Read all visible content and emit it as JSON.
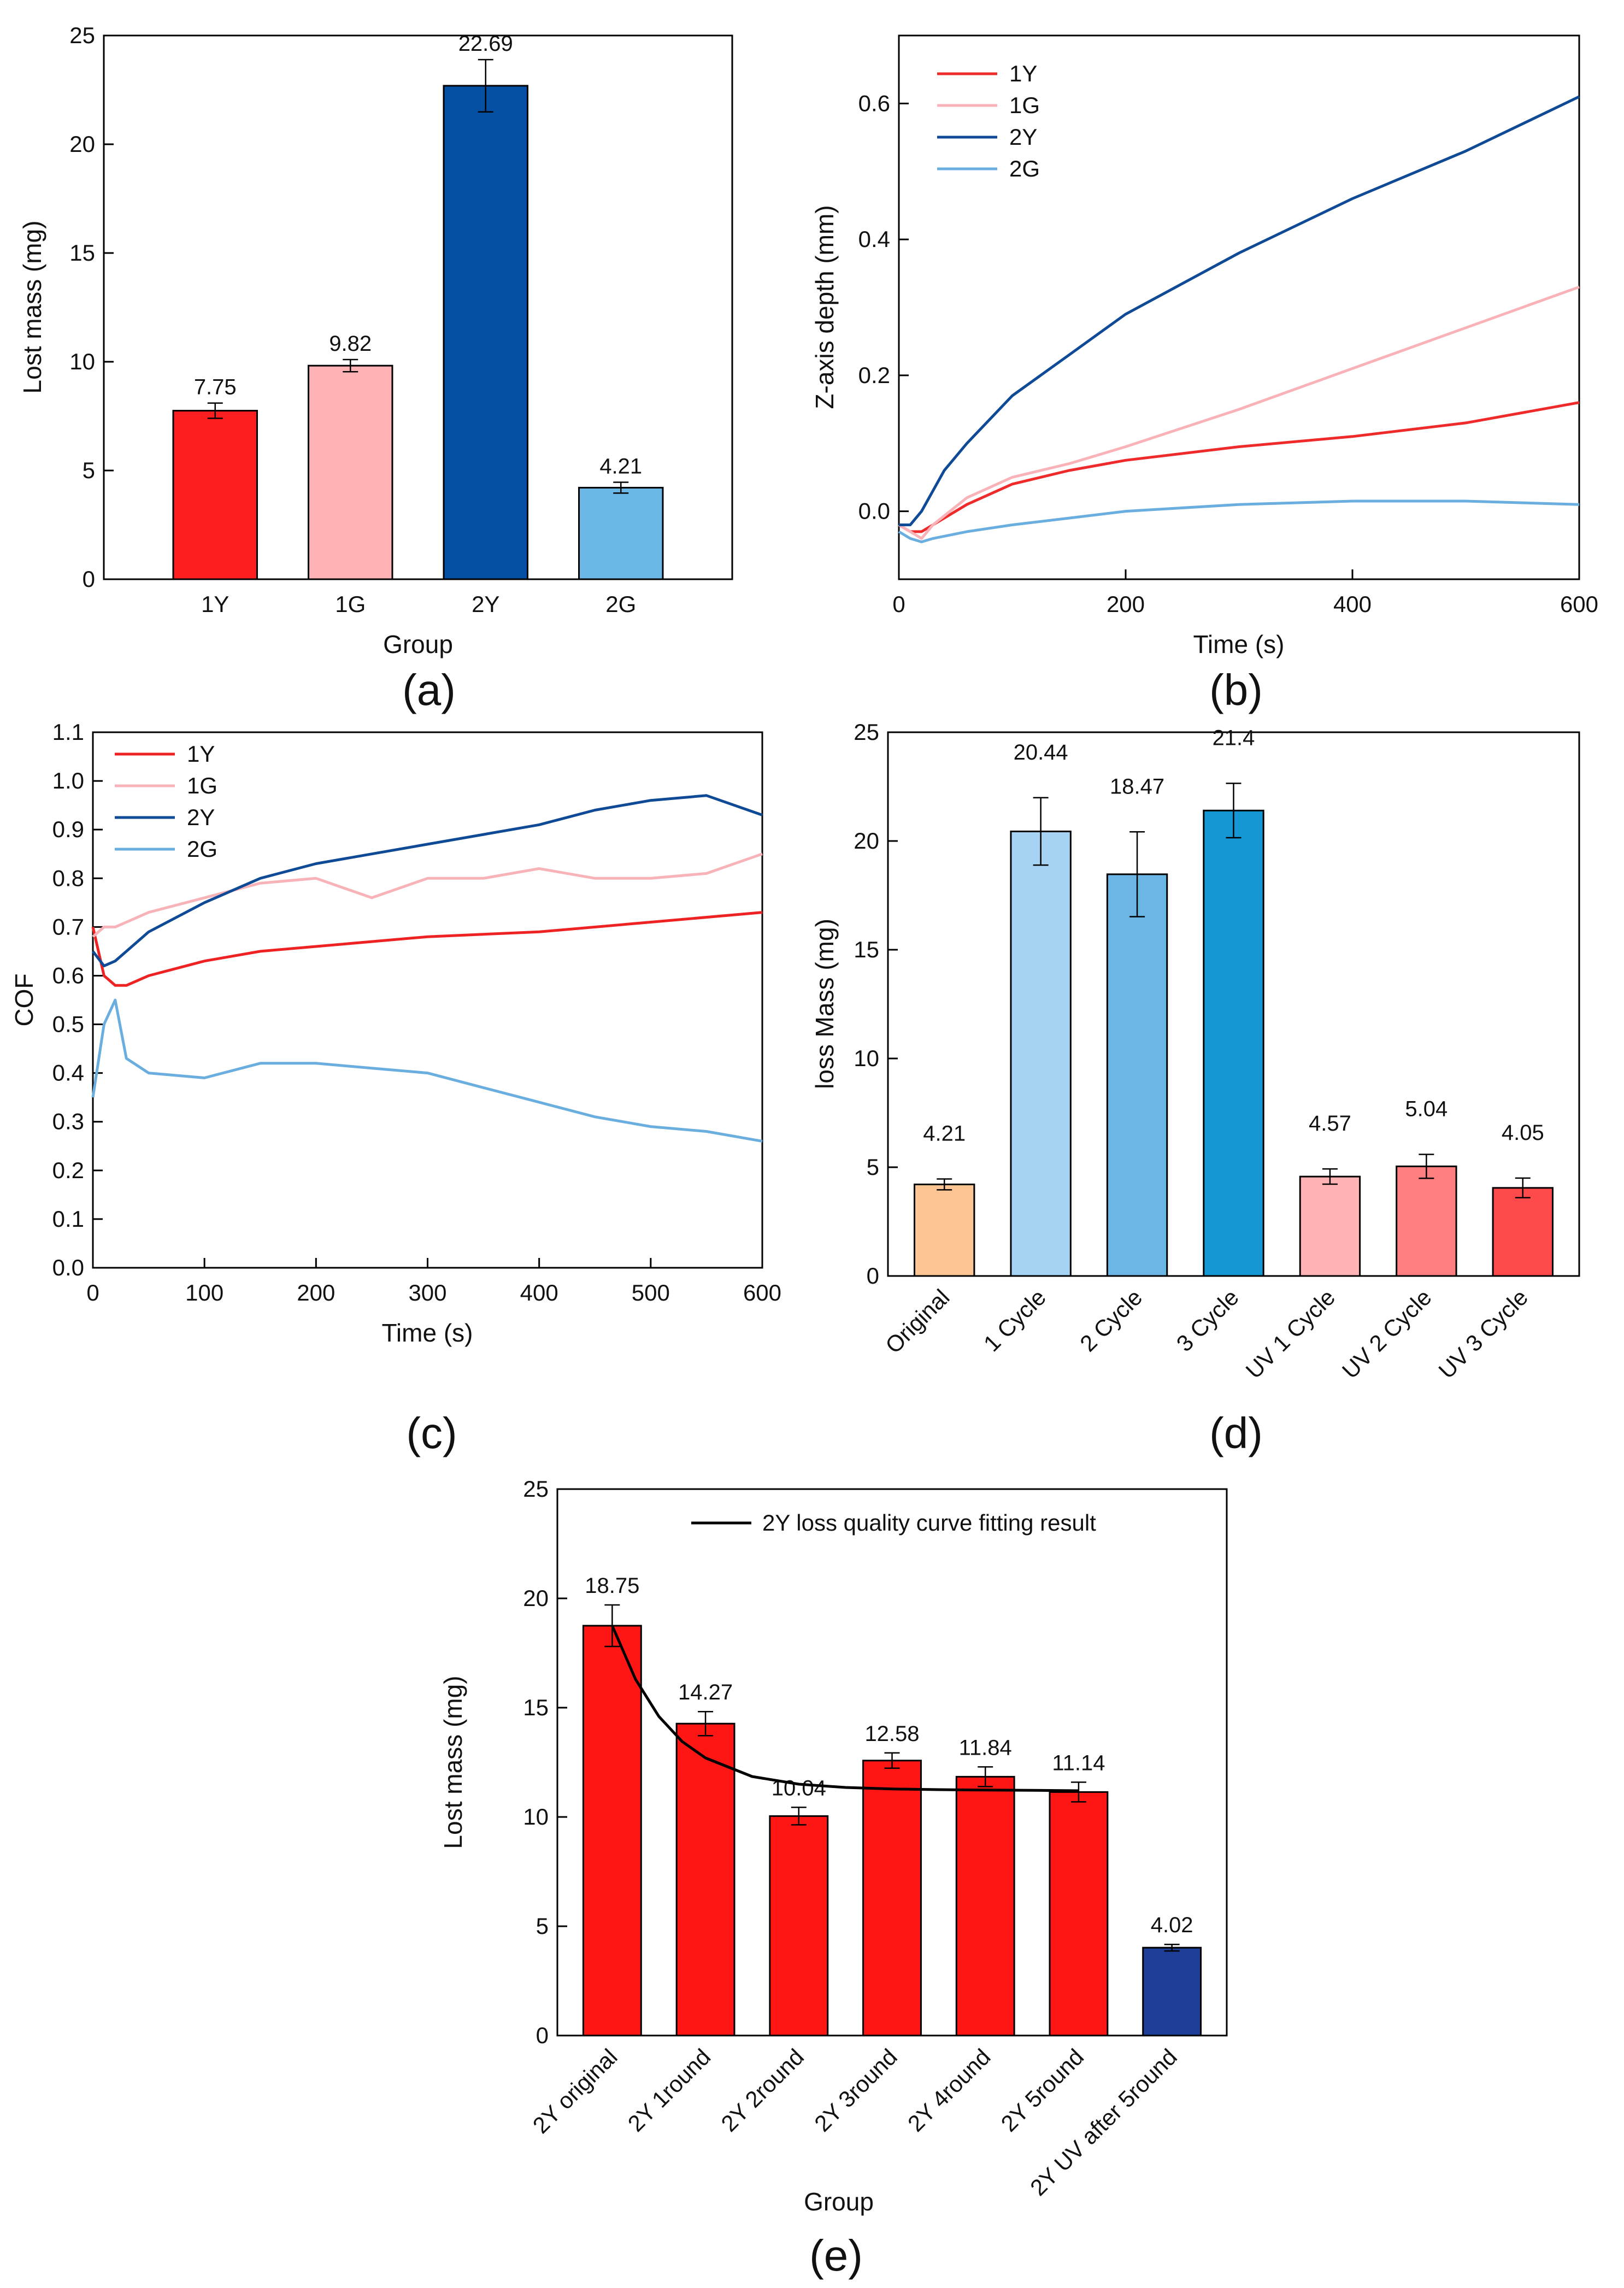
{
  "panels": {
    "a": "(a)",
    "b": "(b)",
    "c": "(c)",
    "d": "(d)",
    "e": "(e)"
  },
  "chart_data": [
    {
      "id": "a",
      "type": "bar",
      "xlabel": "Group",
      "ylabel": "Lost mass (mg)",
      "ylim": [
        0,
        25
      ],
      "yticks": [
        "0",
        "5",
        "10",
        "15",
        "20",
        "25"
      ],
      "categories": [
        "1Y",
        "1G",
        "2Y",
        "2G"
      ],
      "values": [
        7.75,
        9.82,
        22.69,
        4.21
      ],
      "value_labels": [
        "7.75",
        "9.82",
        "22.69",
        "4.21"
      ],
      "errors": [
        0.35,
        0.28,
        1.2,
        0.25
      ],
      "colors": [
        "#fd1f1f",
        "#ffb3b5",
        "#0550a3",
        "#6bb8e6"
      ]
    },
    {
      "id": "b",
      "type": "line",
      "xlabel": "Time (s)",
      "ylabel": "Z-axis depth (mm)",
      "xlim": [
        0,
        600
      ],
      "ylim": [
        -0.1,
        0.7
      ],
      "xticks": [
        "0",
        "200",
        "400",
        "600"
      ],
      "yticks": [
        "0.0",
        "0.2",
        "0.4",
        "0.6"
      ],
      "legend_position": "top-left",
      "series": [
        {
          "name": "1Y",
          "color": "#ee2a2a",
          "x": [
            0,
            10,
            20,
            30,
            60,
            100,
            150,
            200,
            300,
            400,
            500,
            600
          ],
          "y": [
            -0.02,
            -0.03,
            -0.03,
            -0.02,
            0.01,
            0.04,
            0.06,
            0.075,
            0.095,
            0.11,
            0.13,
            0.16
          ]
        },
        {
          "name": "1G",
          "color": "#f9b3b8",
          "x": [
            0,
            10,
            20,
            30,
            60,
            100,
            150,
            200,
            300,
            400,
            500,
            600
          ],
          "y": [
            -0.02,
            -0.03,
            -0.04,
            -0.02,
            0.02,
            0.05,
            0.07,
            0.095,
            0.15,
            0.21,
            0.27,
            0.33
          ]
        },
        {
          "name": "2Y",
          "color": "#0f4a96",
          "x": [
            0,
            10,
            20,
            40,
            60,
            100,
            150,
            200,
            300,
            400,
            500,
            600
          ],
          "y": [
            -0.02,
            -0.02,
            0.0,
            0.06,
            0.1,
            0.17,
            0.23,
            0.29,
            0.38,
            0.46,
            0.53,
            0.61
          ]
        },
        {
          "name": "2G",
          "color": "#6aaee0",
          "x": [
            0,
            10,
            20,
            30,
            60,
            100,
            150,
            200,
            300,
            400,
            500,
            600
          ],
          "y": [
            -0.03,
            -0.04,
            -0.045,
            -0.04,
            -0.03,
            -0.02,
            -0.01,
            0.0,
            0.01,
            0.015,
            0.015,
            0.01
          ]
        }
      ]
    },
    {
      "id": "c",
      "type": "line",
      "xlabel": "Time (s)",
      "ylabel": "COF",
      "xlim": [
        0,
        600
      ],
      "ylim": [
        0,
        1.1
      ],
      "xticks": [
        "0",
        "100",
        "200",
        "300",
        "400",
        "500",
        "600"
      ],
      "yticks": [
        "0.0",
        "0.1",
        "0.2",
        "0.3",
        "0.4",
        "0.5",
        "0.6",
        "0.7",
        "0.8",
        "0.9",
        "1.0",
        "1.1"
      ],
      "legend_position": "top-left",
      "series": [
        {
          "name": "1Y",
          "color": "#ee2222",
          "x": [
            0,
            10,
            20,
            30,
            50,
            100,
            150,
            200,
            300,
            400,
            500,
            600
          ],
          "y": [
            0.7,
            0.6,
            0.58,
            0.58,
            0.6,
            0.63,
            0.65,
            0.66,
            0.68,
            0.69,
            0.71,
            0.73
          ]
        },
        {
          "name": "1G",
          "color": "#f7b3b8",
          "x": [
            0,
            10,
            20,
            30,
            50,
            100,
            150,
            200,
            250,
            300,
            350,
            400,
            450,
            500,
            550,
            600
          ],
          "y": [
            0.68,
            0.7,
            0.7,
            0.71,
            0.73,
            0.76,
            0.79,
            0.8,
            0.76,
            0.8,
            0.8,
            0.82,
            0.8,
            0.8,
            0.81,
            0.85
          ]
        },
        {
          "name": "2Y",
          "color": "#0f4a96",
          "x": [
            0,
            10,
            20,
            30,
            50,
            100,
            150,
            200,
            250,
            300,
            350,
            400,
            450,
            500,
            550,
            600
          ],
          "y": [
            0.65,
            0.62,
            0.63,
            0.65,
            0.69,
            0.75,
            0.8,
            0.83,
            0.85,
            0.87,
            0.89,
            0.91,
            0.94,
            0.96,
            0.97,
            0.93
          ]
        },
        {
          "name": "2G",
          "color": "#6aaee0",
          "x": [
            0,
            10,
            20,
            30,
            50,
            100,
            150,
            200,
            250,
            300,
            350,
            400,
            450,
            500,
            550,
            600
          ],
          "y": [
            0.35,
            0.5,
            0.55,
            0.43,
            0.4,
            0.39,
            0.42,
            0.42,
            0.41,
            0.4,
            0.37,
            0.34,
            0.31,
            0.29,
            0.28,
            0.26
          ]
        }
      ]
    },
    {
      "id": "d",
      "type": "bar",
      "xlabel": "",
      "ylabel": "loss Mass (mg)",
      "ylim": [
        0,
        25
      ],
      "yticks": [
        "0",
        "5",
        "10",
        "15",
        "20",
        "25"
      ],
      "categories": [
        "Original",
        "1 Cycle",
        "2 Cycle",
        "3 Cycle",
        "UV 1 Cycle",
        "UV 2 Cycle",
        "UV 3 Cycle"
      ],
      "values": [
        4.21,
        20.44,
        18.47,
        21.4,
        4.57,
        5.04,
        4.05
      ],
      "value_labels": [
        "4.21",
        "20.44",
        "18.47",
        "21.4",
        "4.57",
        "5.04",
        "4.05"
      ],
      "errors": [
        0.25,
        1.55,
        1.95,
        1.25,
        0.35,
        0.55,
        0.45
      ],
      "colors": [
        "#fdc593",
        "#a6d3f3",
        "#6bb6e5",
        "#1597d4",
        "#ffb3b5",
        "#ff7e80",
        "#fe4a4b"
      ]
    },
    {
      "id": "e",
      "type": "bar",
      "xlabel": "Group",
      "ylabel": "Lost mass (mg)",
      "ylim": [
        0,
        25
      ],
      "yticks": [
        "0",
        "5",
        "10",
        "15",
        "20",
        "25"
      ],
      "categories": [
        "2Y original",
        "2Y 1round",
        "2Y 2round",
        "2Y 3round",
        "2Y 4round",
        "2Y 5round",
        "2Y UV after 5round"
      ],
      "values": [
        18.75,
        14.27,
        10.04,
        12.58,
        11.84,
        11.14,
        4.02
      ],
      "value_labels": [
        "18.75",
        "14.27",
        "10.04",
        "12.58",
        "11.84",
        "11.14",
        "4.02"
      ],
      "errors": [
        0.95,
        0.55,
        0.4,
        0.35,
        0.45,
        0.45,
        0.15
      ],
      "colors": [
        "#fd1614",
        "#fd1614",
        "#fd1614",
        "#fd1614",
        "#fd1614",
        "#fd1614",
        "#1d3f97"
      ],
      "fit_curve": {
        "name": "2Y loss quality curve fitting result",
        "color": "#000000",
        "x": [
          0,
          0.25,
          0.5,
          0.75,
          1,
          1.5,
          2,
          2.5,
          3,
          3.5,
          4,
          4.5,
          5
        ],
        "y": [
          18.75,
          16.3,
          14.6,
          13.45,
          12.7,
          11.85,
          11.5,
          11.35,
          11.28,
          11.25,
          11.23,
          11.22,
          11.2
        ]
      }
    }
  ]
}
